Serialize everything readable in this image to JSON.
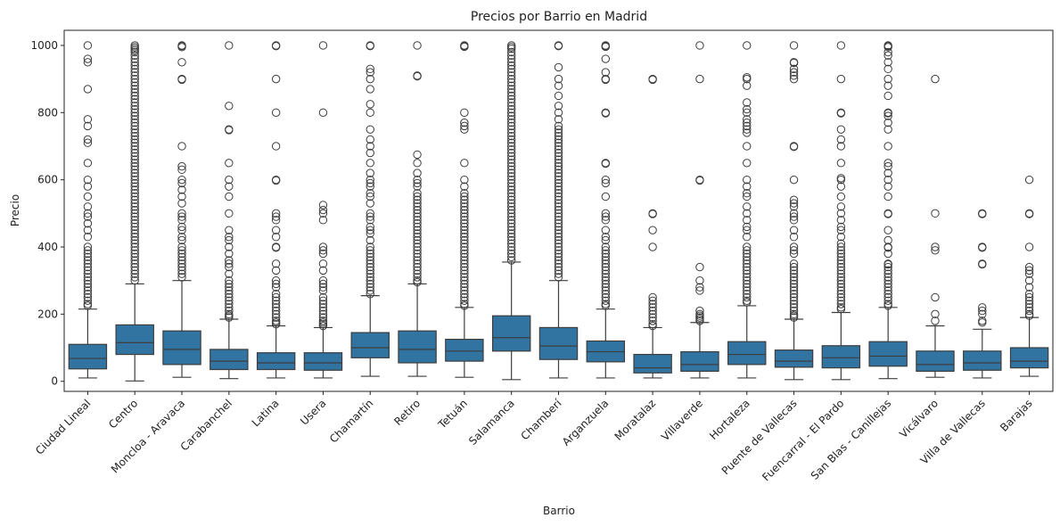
{
  "chart_data": {
    "type": "box",
    "title": "Precios por Barrio en Madrid",
    "xlabel": "Barrio",
    "ylabel": "Precio",
    "ylim": [
      -30,
      1045
    ],
    "yticks": [
      0,
      200,
      400,
      600,
      800,
      1000
    ],
    "grid": false,
    "box_color": "#3274a1",
    "line_color": "#3d3d3d",
    "categories": [
      "Ciudad Lineal",
      "Centro",
      "Moncloa - Aravaca",
      "Carabanchel",
      "Latina",
      "Usera",
      "Chamartín",
      "Retiro",
      "Tetuán",
      "Salamanca",
      "Chamberí",
      "Arganzuela",
      "Moratalaz",
      "Villaverde",
      "Hortaleza",
      "Puente de Vallecas",
      "Fuencarral - El Pardo",
      "San Blas - Canillejas",
      "Vicálvaro",
      "Villa de Vallecas",
      "Barajas"
    ],
    "boxes": [
      {
        "name": "Ciudad Lineal",
        "whislo": 10,
        "q1": 37,
        "med": 68,
        "q3": 110,
        "whishi": 215,
        "fliers": [
          1000,
          960,
          950,
          870,
          780,
          760,
          720,
          710,
          650,
          600,
          580,
          550,
          520,
          500,
          490,
          470,
          450,
          430,
          400,
          390,
          380,
          370,
          360,
          350,
          340,
          330,
          320,
          310,
          300,
          290,
          280,
          270,
          260,
          250,
          240,
          230,
          225
        ]
      },
      {
        "name": "Centro",
        "whislo": 1,
        "q1": 80,
        "med": 115,
        "q3": 168,
        "whishi": 290,
        "fliers": [
          1000,
          995,
          990,
          985,
          980,
          970,
          960,
          950,
          940,
          930,
          920,
          910,
          900,
          890,
          880,
          870,
          860,
          850,
          840,
          830,
          820,
          810,
          800,
          790,
          780,
          770,
          760,
          750,
          740,
          730,
          720,
          710,
          700,
          690,
          680,
          670,
          660,
          650,
          640,
          630,
          620,
          610,
          600,
          590,
          580,
          570,
          560,
          550,
          540,
          530,
          520,
          510,
          500,
          490,
          480,
          470,
          460,
          450,
          440,
          430,
          420,
          410,
          400,
          390,
          380,
          370,
          360,
          350,
          340,
          330,
          320,
          310,
          300
        ]
      },
      {
        "name": "Moncloa - Aravaca",
        "whislo": 12,
        "q1": 50,
        "med": 95,
        "q3": 150,
        "whishi": 300,
        "fliers": [
          1000,
          998,
          995,
          950,
          900,
          898,
          700,
          640,
          630,
          600,
          590,
          570,
          550,
          530,
          500,
          490,
          480,
          460,
          450,
          430,
          420,
          400,
          390,
          380,
          370,
          360,
          350,
          340,
          330,
          320,
          310
        ]
      },
      {
        "name": "Carabanchel",
        "whislo": 8,
        "q1": 35,
        "med": 60,
        "q3": 95,
        "whishi": 185,
        "fliers": [
          1000,
          820,
          750,
          748,
          650,
          600,
          580,
          550,
          500,
          450,
          430,
          420,
          400,
          380,
          360,
          350,
          340,
          320,
          300,
          290,
          280,
          270,
          260,
          250,
          240,
          230,
          220,
          210,
          200,
          195,
          190
        ]
      },
      {
        "name": "Latina",
        "whislo": 10,
        "q1": 35,
        "med": 55,
        "q3": 85,
        "whishi": 165,
        "fliers": [
          1000,
          998,
          900,
          800,
          700,
          600,
          598,
          500,
          490,
          480,
          450,
          430,
          400,
          398,
          350,
          330,
          300,
          290,
          280,
          260,
          250,
          240,
          230,
          220,
          210,
          200,
          190,
          180,
          175,
          170
        ]
      },
      {
        "name": "Usera",
        "whislo": 10,
        "q1": 33,
        "med": 55,
        "q3": 85,
        "whishi": 160,
        "fliers": [
          1000,
          800,
          525,
          510,
          500,
          480,
          400,
          390,
          380,
          350,
          330,
          300,
          290,
          280,
          270,
          250,
          240,
          230,
          220,
          210,
          200,
          190,
          180,
          175,
          170,
          165
        ]
      },
      {
        "name": "Chamartín",
        "whislo": 15,
        "q1": 70,
        "med": 100,
        "q3": 145,
        "whishi": 255,
        "fliers": [
          1000,
          998,
          930,
          920,
          900,
          870,
          825,
          800,
          750,
          720,
          700,
          680,
          650,
          620,
          600,
          590,
          580,
          560,
          550,
          530,
          500,
          490,
          480,
          460,
          450,
          440,
          420,
          400,
          390,
          380,
          370,
          360,
          350,
          340,
          330,
          320,
          310,
          300,
          290,
          280,
          270,
          260
        ]
      },
      {
        "name": "Retiro",
        "whislo": 15,
        "q1": 55,
        "med": 95,
        "q3": 150,
        "whishi": 290,
        "fliers": [
          1000,
          910,
          908,
          675,
          650,
          620,
          600,
          590,
          580,
          560,
          550,
          540,
          530,
          520,
          510,
          500,
          490,
          480,
          470,
          460,
          450,
          440,
          430,
          420,
          410,
          400,
          390,
          380,
          370,
          360,
          350,
          340,
          330,
          320,
          310,
          300,
          295
        ]
      },
      {
        "name": "Tetuán",
        "whislo": 12,
        "q1": 60,
        "med": 90,
        "q3": 125,
        "whishi": 220,
        "fliers": [
          1000,
          998,
          996,
          800,
          770,
          760,
          750,
          650,
          600,
          580,
          560,
          550,
          540,
          530,
          520,
          510,
          500,
          490,
          480,
          470,
          460,
          450,
          440,
          430,
          420,
          410,
          400,
          390,
          380,
          370,
          360,
          350,
          340,
          330,
          320,
          310,
          300,
          290,
          280,
          270,
          260,
          250,
          240,
          230,
          225
        ]
      },
      {
        "name": "Salamanca",
        "whislo": 5,
        "q1": 90,
        "med": 130,
        "q3": 195,
        "whishi": 355,
        "fliers": [
          1000,
          995,
          990,
          980,
          970,
          960,
          950,
          940,
          930,
          920,
          910,
          900,
          890,
          880,
          870,
          860,
          850,
          840,
          830,
          820,
          810,
          800,
          790,
          780,
          770,
          760,
          750,
          740,
          730,
          720,
          710,
          700,
          690,
          680,
          670,
          660,
          650,
          640,
          630,
          620,
          610,
          600,
          590,
          580,
          570,
          560,
          550,
          540,
          530,
          520,
          510,
          500,
          490,
          480,
          470,
          460,
          450,
          440,
          430,
          420,
          410,
          400,
          390,
          380,
          370,
          360
        ]
      },
      {
        "name": "Chamberí",
        "whislo": 10,
        "q1": 65,
        "med": 105,
        "q3": 160,
        "whishi": 300,
        "fliers": [
          1000,
          998,
          935,
          900,
          880,
          850,
          820,
          800,
          780,
          760,
          750,
          740,
          730,
          720,
          710,
          700,
          690,
          680,
          670,
          660,
          650,
          640,
          630,
          620,
          610,
          600,
          590,
          580,
          570,
          560,
          550,
          540,
          530,
          520,
          510,
          500,
          490,
          480,
          470,
          460,
          450,
          440,
          430,
          420,
          410,
          400,
          390,
          380,
          370,
          360,
          350,
          340,
          330,
          320,
          310
        ]
      },
      {
        "name": "Arganzuela",
        "whislo": 10,
        "q1": 58,
        "med": 88,
        "q3": 120,
        "whishi": 215,
        "fliers": [
          1000,
          998,
          996,
          960,
          920,
          900,
          898,
          800,
          798,
          650,
          648,
          600,
          590,
          550,
          500,
          490,
          480,
          450,
          430,
          420,
          400,
          390,
          380,
          370,
          360,
          350,
          340,
          330,
          320,
          310,
          300,
          290,
          280,
          270,
          260,
          250,
          240,
          230,
          225
        ]
      },
      {
        "name": "Moratalaz",
        "whislo": 10,
        "q1": 25,
        "med": 40,
        "q3": 80,
        "whishi": 160,
        "fliers": [
          900,
          898,
          500,
          498,
          450,
          400,
          250,
          240,
          230,
          220,
          210,
          200,
          190,
          180,
          170,
          165
        ]
      },
      {
        "name": "Villaverde",
        "whislo": 10,
        "q1": 30,
        "med": 50,
        "q3": 88,
        "whishi": 175,
        "fliers": [
          1000,
          900,
          600,
          598,
          340,
          300,
          280,
          270,
          210,
          200,
          195,
          190,
          185,
          180
        ]
      },
      {
        "name": "Hortaleza",
        "whislo": 10,
        "q1": 50,
        "med": 80,
        "q3": 118,
        "whishi": 225,
        "fliers": [
          1000,
          905,
          900,
          880,
          830,
          810,
          800,
          780,
          770,
          760,
          750,
          740,
          700,
          650,
          600,
          580,
          560,
          550,
          520,
          500,
          480,
          460,
          450,
          430,
          400,
          390,
          380,
          370,
          360,
          350,
          340,
          330,
          320,
          310,
          300,
          290,
          280,
          270,
          260,
          250,
          240,
          235
        ]
      },
      {
        "name": "Puente de Vallecas",
        "whislo": 5,
        "q1": 42,
        "med": 60,
        "q3": 93,
        "whishi": 185,
        "fliers": [
          1000,
          950,
          948,
          930,
          920,
          910,
          900,
          700,
          698,
          600,
          540,
          530,
          520,
          500,
          490,
          480,
          450,
          430,
          400,
          390,
          380,
          350,
          340,
          330,
          320,
          310,
          300,
          290,
          280,
          270,
          260,
          250,
          240,
          230,
          220,
          210,
          200,
          195,
          190
        ]
      },
      {
        "name": "Fuencarral - El Pardo",
        "whislo": 5,
        "q1": 40,
        "med": 70,
        "q3": 106,
        "whishi": 205,
        "fliers": [
          1000,
          900,
          800,
          798,
          750,
          720,
          700,
          650,
          605,
          600,
          580,
          550,
          520,
          500,
          480,
          460,
          450,
          430,
          410,
          400,
          390,
          380,
          370,
          360,
          350,
          340,
          330,
          320,
          310,
          300,
          290,
          280,
          270,
          260,
          250,
          240,
          230,
          220,
          215
        ]
      },
      {
        "name": "San Blas - Canillejas",
        "whislo": 8,
        "q1": 45,
        "med": 75,
        "q3": 118,
        "whishi": 220,
        "fliers": [
          1000,
          998,
          995,
          980,
          970,
          950,
          930,
          900,
          880,
          850,
          800,
          798,
          790,
          770,
          750,
          700,
          650,
          640,
          620,
          600,
          580,
          550,
          500,
          498,
          450,
          420,
          400,
          398,
          380,
          350,
          348,
          340,
          330,
          320,
          310,
          300,
          290,
          280,
          270,
          260,
          250,
          240,
          230,
          225
        ]
      },
      {
        "name": "Vicálvaro",
        "whislo": 12,
        "q1": 30,
        "med": 50,
        "q3": 90,
        "whishi": 165,
        "fliers": [
          900,
          500,
          400,
          390,
          250,
          200,
          180
        ]
      },
      {
        "name": "Villa de Vallecas",
        "whislo": 10,
        "q1": 33,
        "med": 55,
        "q3": 90,
        "whishi": 155,
        "fliers": [
          500,
          498,
          400,
          398,
          350,
          348,
          220,
          210,
          200,
          180,
          175
        ]
      },
      {
        "name": "Barajas",
        "whislo": 15,
        "q1": 40,
        "med": 60,
        "q3": 100,
        "whishi": 190,
        "fliers": [
          600,
          500,
          498,
          400,
          340,
          330,
          320,
          300,
          280,
          260,
          250,
          240,
          230,
          220,
          210,
          200,
          195
        ]
      }
    ]
  }
}
